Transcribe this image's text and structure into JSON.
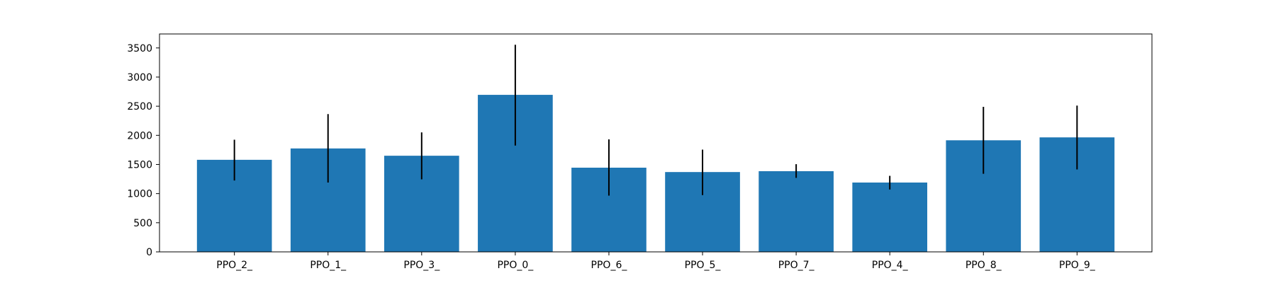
{
  "chart_data": {
    "type": "bar",
    "categories": [
      "PPO_2_",
      "PPO_1_",
      "PPO_3_",
      "PPO_0_",
      "PPO_6_",
      "PPO_5_",
      "PPO_7_",
      "PPO_4_",
      "PPO_8_",
      "PPO_9_"
    ],
    "values": [
      1580,
      1775,
      1650,
      2695,
      1445,
      1370,
      1385,
      1190,
      1915,
      1965
    ],
    "error_low": [
      1225,
      1190,
      1245,
      1825,
      965,
      975,
      1270,
      1070,
      1340,
      1415
    ],
    "error_high": [
      1925,
      2365,
      2050,
      3555,
      1930,
      1755,
      1505,
      1305,
      2490,
      2510
    ],
    "title": "",
    "xlabel": "",
    "ylabel": "",
    "ylim": [
      0,
      3740
    ],
    "yticks": [
      0,
      500,
      1000,
      1500,
      2000,
      2500,
      3000,
      3500
    ],
    "grid": false,
    "colors": {
      "bar": "#1f77b4",
      "error": "#000000",
      "axes": "#000000"
    }
  }
}
